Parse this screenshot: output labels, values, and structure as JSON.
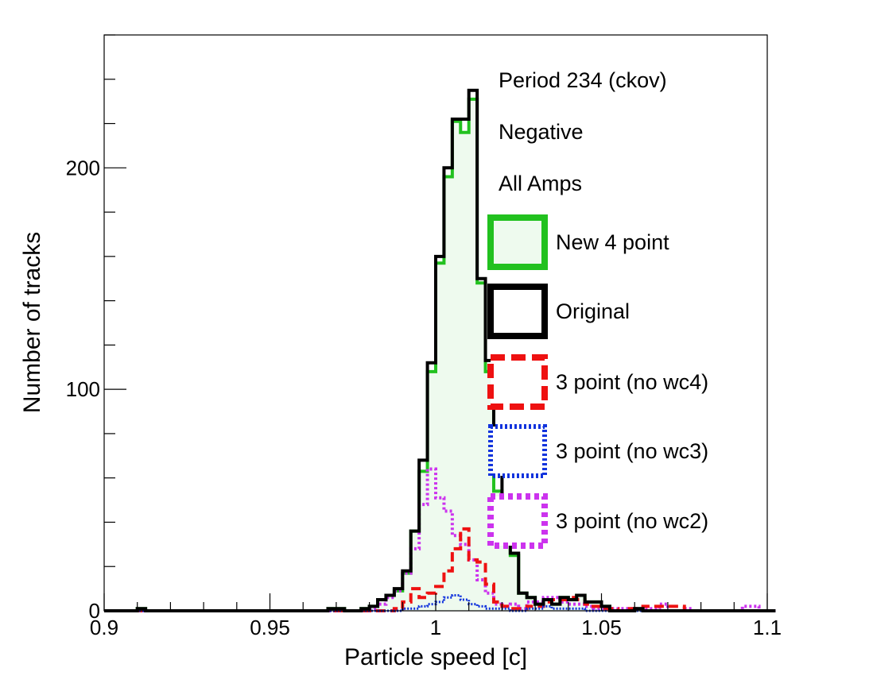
{
  "chart_data": {
    "type": "histogram",
    "title": "",
    "xlabel": "Particle speed [c]",
    "ylabel": "Number of tracks",
    "xlim": [
      0.9,
      1.1
    ],
    "ylim": [
      0,
      260
    ],
    "bin_edges_start": 0.9,
    "bin_width": 0.0025,
    "x_ticks": [
      {
        "value": 0.9,
        "label": "0.9"
      },
      {
        "value": 0.95,
        "label": "0.95"
      },
      {
        "value": 1.0,
        "label": "1"
      },
      {
        "value": 1.05,
        "label": "1.05"
      },
      {
        "value": 1.1,
        "label": "1.1"
      }
    ],
    "y_ticks": [
      {
        "value": 0,
        "label": "0"
      },
      {
        "value": 100,
        "label": "100"
      },
      {
        "value": 200,
        "label": "200"
      }
    ],
    "header_lines": [
      "Period 234 (ckov)",
      "Negative",
      "All Amps"
    ],
    "series": [
      {
        "key": "orig",
        "name": "Original",
        "color": "#000000",
        "fill": "none",
        "style": "solid",
        "values": [
          0,
          0,
          0,
          0,
          1,
          0,
          0,
          0,
          0,
          0,
          0,
          0,
          0,
          0,
          0,
          0,
          0,
          0,
          0,
          0,
          0,
          0,
          0,
          0,
          0,
          0,
          0,
          1,
          1,
          0,
          0,
          1,
          2,
          5,
          7,
          10,
          18,
          36,
          68,
          112,
          160,
          200,
          222,
          222,
          235,
          150,
          113,
          63,
          39,
          26,
          8,
          6,
          3,
          5,
          3,
          6,
          5,
          7,
          4,
          4,
          2,
          0,
          0,
          0,
          1,
          0,
          0,
          0,
          0,
          0,
          0,
          0,
          0,
          0,
          0,
          0,
          0,
          0,
          0,
          0,
          0
        ]
      },
      {
        "key": "new4",
        "name": "New 4 point",
        "color": "#22c11f",
        "fill": "#eefaee",
        "style": "solid",
        "values": [
          0,
          0,
          0,
          0,
          1,
          0,
          0,
          0,
          0,
          0,
          0,
          0,
          0,
          0,
          0,
          0,
          0,
          0,
          0,
          0,
          0,
          0,
          0,
          0,
          0,
          0,
          0,
          1,
          1,
          0,
          0,
          1,
          2,
          5,
          7,
          9,
          17,
          36,
          63,
          108,
          157,
          196,
          221,
          216,
          231,
          148,
          108,
          54,
          37,
          25,
          8,
          6,
          3,
          5,
          3,
          6,
          5,
          7,
          4,
          4,
          2,
          0,
          0,
          0,
          1,
          0,
          0,
          0,
          0,
          0,
          0,
          0,
          0,
          0,
          0,
          0,
          0,
          0,
          0,
          0,
          0
        ]
      },
      {
        "key": "nowc4",
        "name": "3 point (no wc4)",
        "color": "#ee1111",
        "fill": "none",
        "style": "dashed",
        "values": [
          0,
          0,
          0,
          0,
          0,
          0,
          0,
          0,
          0,
          0,
          0,
          0,
          0,
          0,
          0,
          0,
          0,
          0,
          0,
          0,
          0,
          0,
          0,
          0,
          0,
          0,
          0,
          0,
          0,
          0,
          0,
          0,
          0,
          0,
          0,
          1,
          4,
          10,
          6,
          8,
          11,
          18,
          28,
          37,
          23,
          22,
          12,
          4,
          2,
          1,
          1,
          2,
          2,
          4,
          5,
          5,
          6,
          5,
          3,
          2,
          1,
          1,
          0,
          1,
          1,
          2,
          2,
          2,
          2,
          2,
          0,
          0,
          0,
          0,
          0,
          0,
          0,
          0,
          0,
          0,
          0
        ]
      },
      {
        "key": "nowc3",
        "name": "3 point (no wc3)",
        "color": "#1133dd",
        "fill": "none",
        "style": "dotted",
        "values": [
          0,
          0,
          0,
          0,
          0,
          0,
          0,
          0,
          0,
          0,
          0,
          0,
          0,
          0,
          0,
          0,
          0,
          0,
          0,
          0,
          0,
          0,
          0,
          0,
          0,
          0,
          0,
          0,
          0,
          0,
          0,
          0,
          0,
          0,
          0,
          0,
          1,
          1,
          2,
          3,
          4,
          6,
          7,
          5,
          3,
          2,
          1,
          1,
          1,
          0,
          0,
          1,
          1,
          2,
          1,
          1,
          1,
          1,
          0,
          0,
          0,
          0,
          0,
          0,
          0,
          0,
          0,
          0,
          0,
          0,
          0,
          0,
          0,
          0,
          0,
          0,
          0,
          0,
          0,
          0,
          0
        ]
      },
      {
        "key": "nowc2",
        "name": "3 point (no wc2)",
        "color": "#cc33ee",
        "fill": "none",
        "style": "dotted-thick",
        "values": [
          0,
          0,
          0,
          0,
          0,
          0,
          0,
          0,
          0,
          0,
          0,
          0,
          0,
          0,
          0,
          0,
          0,
          0,
          0,
          0,
          0,
          0,
          0,
          0,
          0,
          0,
          0,
          0,
          0,
          0,
          0,
          0,
          1,
          3,
          6,
          9,
          17,
          28,
          48,
          64,
          51,
          45,
          34,
          30,
          23,
          14,
          8,
          3,
          2,
          3,
          1,
          4,
          4,
          6,
          6,
          4,
          3,
          3,
          2,
          1,
          1,
          1,
          1,
          1,
          1,
          1,
          1,
          3,
          0,
          0,
          1,
          0,
          0,
          0,
          0,
          0,
          0,
          2,
          2,
          0,
          0
        ]
      }
    ],
    "legend_order": [
      "new4",
      "orig",
      "nowc4",
      "nowc3",
      "nowc2"
    ]
  }
}
